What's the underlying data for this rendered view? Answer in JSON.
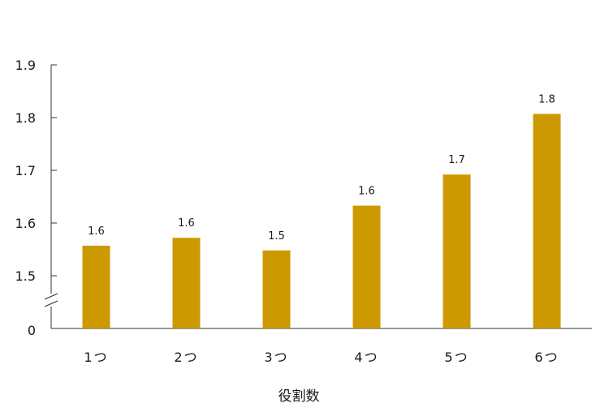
{
  "chart_data": {
    "type": "bar",
    "categories": [
      "1つ",
      "2つ",
      "3つ",
      "4つ",
      "5つ",
      "6つ"
    ],
    "values": [
      1.557,
      1.572,
      1.548,
      1.633,
      1.692,
      1.807
    ],
    "data_labels": [
      "1.6",
      "1.6",
      "1.5",
      "1.6",
      "1.7",
      "1.8"
    ],
    "xlabel": "役割数",
    "ylabel": "",
    "ylim": [
      1.5,
      1.9
    ],
    "yticks": [
      "1.5",
      "1.6",
      "1.7",
      "1.8",
      "1.9"
    ],
    "ytick_values": [
      1.5,
      1.6,
      1.7,
      1.8,
      1.9
    ],
    "y_zero_label": "0",
    "axis_break": true,
    "grid": false,
    "bar_color": "#cc9900"
  }
}
